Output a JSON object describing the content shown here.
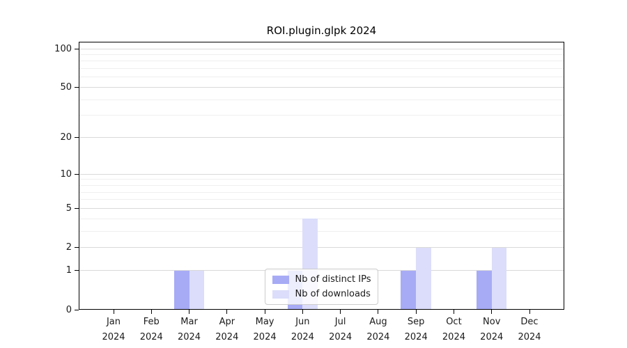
{
  "chart_data": {
    "type": "bar",
    "title": "ROI.plugin.glpk 2024",
    "categories": [
      "Jan",
      "Feb",
      "Mar",
      "Apr",
      "May",
      "Jun",
      "Jul",
      "Aug",
      "Sep",
      "Oct",
      "Nov",
      "Dec"
    ],
    "x_year_label": "2024",
    "series": [
      {
        "name": "Nb of distinct IPs",
        "color": "#a7abf5",
        "values": [
          0,
          0,
          1,
          0,
          0,
          1,
          0,
          0,
          1,
          0,
          1,
          0
        ]
      },
      {
        "name": "Nb of downloads",
        "color": "#dbddfa",
        "values": [
          0,
          0,
          1,
          0,
          0,
          4,
          0,
          0,
          2,
          0,
          2,
          0
        ]
      }
    ],
    "y_scale": "log1p",
    "y_axis": {
      "major_ticks": [
        0,
        1,
        2,
        5,
        10,
        20,
        50,
        100
      ],
      "minor_gridlines": [
        3,
        4,
        6,
        7,
        8,
        9,
        30,
        40,
        60,
        70,
        80,
        90
      ],
      "ylim": [
        0,
        113
      ]
    },
    "xlabel": "",
    "ylabel": "",
    "grid": true,
    "legend_position": "lower center"
  },
  "colors": {
    "major_grid": "#d9d9d9",
    "minor_grid": "#efefef",
    "spine": "#000000",
    "text": "#1a1a1a"
  }
}
